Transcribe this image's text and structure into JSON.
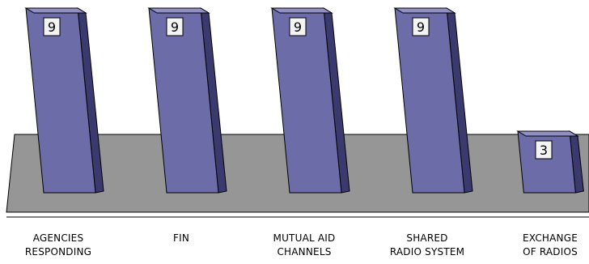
{
  "chart_data": {
    "type": "bar",
    "style": "3d-column",
    "categories": [
      [
        "AGENCIES",
        "RESPONDING"
      ],
      [
        "FIN"
      ],
      [
        "MUTUAL AID",
        "CHANNELS"
      ],
      [
        "SHARED",
        "RADIO SYSTEM"
      ],
      [
        "EXCHANGE",
        "OF RADIOS"
      ]
    ],
    "values": [
      9,
      9,
      9,
      9,
      3
    ],
    "ylim": [
      0,
      9
    ],
    "grid": false,
    "legend": "none",
    "data_labels": true
  },
  "colors": {
    "bar_front": "#6c6ca8",
    "bar_side": "#3a3a6e",
    "bar_top": "#9090c4",
    "floor": "#969696",
    "label_bg": "#f4f4f4",
    "outline": "#000000"
  }
}
